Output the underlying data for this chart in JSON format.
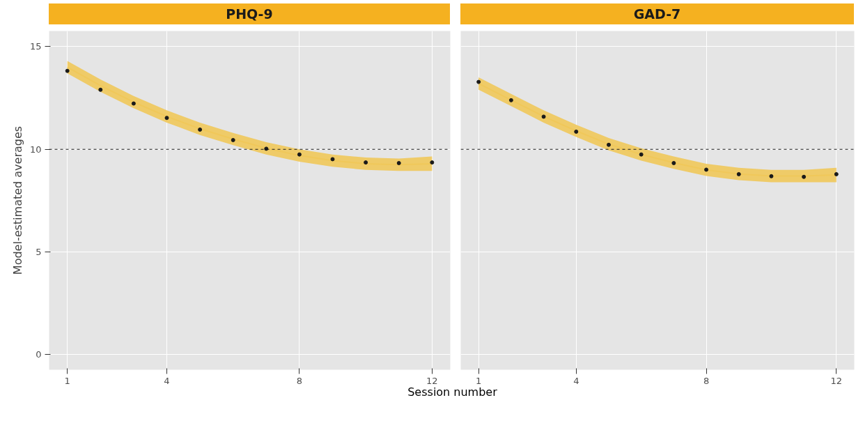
{
  "chart_data": [
    {
      "type": "scatter",
      "title": "PHQ-9",
      "xlabel": "Session number",
      "ylabel": "Model-estimated averages",
      "x": [
        1,
        2,
        3,
        4,
        5,
        6,
        7,
        8,
        9,
        10,
        11,
        12
      ],
      "xlim": [
        0.45,
        12.55
      ],
      "xticks": [
        1,
        4,
        8,
        12
      ],
      "ylim": [
        -0.73,
        15.76
      ],
      "yticks": [
        0,
        5,
        10,
        15
      ],
      "grid": true,
      "series": [
        {
          "type": "line",
          "marker": "none",
          "color": "#f0c85a",
          "values": [
            14.0,
            13.1,
            12.3,
            11.6,
            11.0,
            10.5,
            10.05,
            9.7,
            9.45,
            9.3,
            9.25,
            9.3
          ],
          "lower": [
            13.7,
            12.8,
            12.0,
            11.3,
            10.7,
            10.2,
            9.75,
            9.4,
            9.15,
            9.0,
            8.95,
            8.95
          ],
          "upper": [
            14.3,
            13.4,
            12.6,
            11.9,
            11.3,
            10.8,
            10.35,
            10.0,
            9.75,
            9.6,
            9.55,
            9.65
          ]
        },
        {
          "marker": "circle",
          "color": "#1a1a1a",
          "values": [
            13.82,
            12.9,
            12.23,
            11.53,
            10.96,
            10.45,
            10.03,
            9.75,
            9.52,
            9.36,
            9.33,
            9.36
          ]
        }
      ],
      "ref_lines": [
        {
          "axis": "y",
          "value": 10,
          "color": "#1a1a1a",
          "line_style": "dashed"
        }
      ]
    },
    {
      "type": "scatter",
      "title": "GAD-7",
      "x": [
        1,
        2,
        3,
        4,
        5,
        6,
        7,
        8,
        9,
        10,
        11,
        12
      ],
      "xlim": [
        0.45,
        12.55
      ],
      "xticks": [
        1,
        4,
        8,
        12
      ],
      "ylim": [
        -0.73,
        15.76
      ],
      "yticks": [
        0,
        5,
        10,
        15
      ],
      "tick_labels": "x",
      "grid": true,
      "series": [
        {
          "type": "line",
          "marker": "none",
          "color": "#f0c85a",
          "values": [
            13.2,
            12.4,
            11.6,
            10.9,
            10.25,
            9.75,
            9.35,
            9.0,
            8.8,
            8.7,
            8.7,
            8.75
          ],
          "lower": [
            12.9,
            12.1,
            11.3,
            10.6,
            9.95,
            9.45,
            9.05,
            8.7,
            8.5,
            8.4,
            8.4,
            8.4
          ],
          "upper": [
            13.5,
            12.7,
            11.9,
            11.2,
            10.55,
            10.05,
            9.65,
            9.3,
            9.1,
            9.0,
            9.0,
            9.1
          ]
        },
        {
          "marker": "circle",
          "color": "#1a1a1a",
          "values": [
            13.28,
            12.39,
            11.59,
            10.86,
            10.22,
            9.75,
            9.33,
            9.01,
            8.79,
            8.69,
            8.66,
            8.79
          ]
        }
      ],
      "ref_lines": [
        {
          "axis": "y",
          "value": 10,
          "color": "#1a1a1a",
          "line_style": "dashed"
        }
      ]
    }
  ]
}
